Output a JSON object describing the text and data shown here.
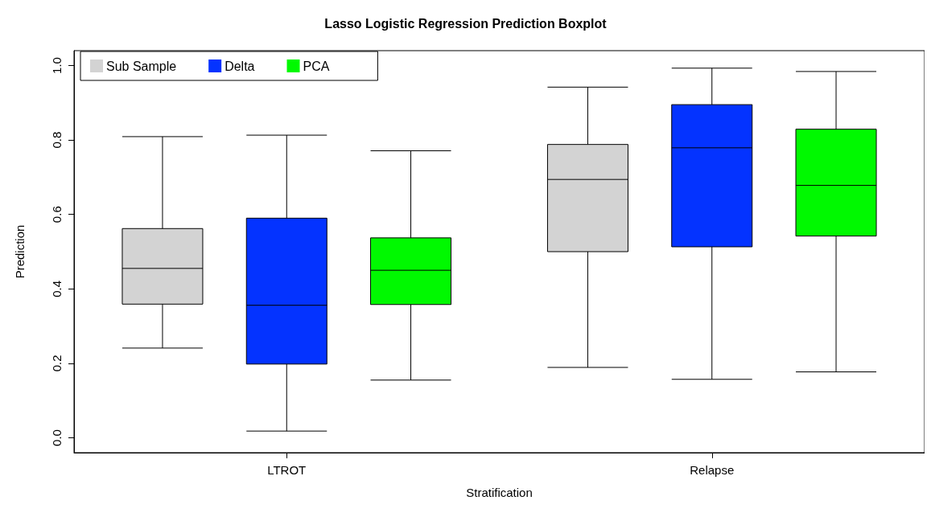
{
  "chart_data": {
    "type": "box",
    "title": "Lasso Logistic Regression Prediction Boxplot",
    "xlabel": "Stratification",
    "ylabel": "Prediction",
    "categories": [
      "LTROT",
      "Relapse"
    ],
    "ylim": [
      -0.04,
      1.04
    ],
    "yticks": [
      {
        "value": 0,
        "label": "0.0"
      },
      0.2,
      0.4,
      0.6,
      0.8,
      {
        "value": 1,
        "label": "1.0"
      }
    ],
    "grid": false,
    "legend": "top left",
    "series": [
      {
        "name": "Sub Sample",
        "color": "#d3d3d3",
        "boxes": [
          {
            "low": 0.241,
            "q1": 0.359,
            "median": 0.455,
            "q3": 0.562,
            "high": 0.809
          },
          {
            "low": 0.189,
            "q1": 0.5,
            "median": 0.694,
            "q3": 0.788,
            "high": 0.942
          }
        ]
      },
      {
        "name": "Delta",
        "color": "#0433ff",
        "boxes": [
          {
            "low": 0.018,
            "q1": 0.198,
            "median": 0.356,
            "q3": 0.59,
            "high": 0.813
          },
          {
            "low": 0.157,
            "q1": 0.513,
            "median": 0.779,
            "q3": 0.895,
            "high": 0.993
          }
        ]
      },
      {
        "name": "PCA",
        "color": "#00f900",
        "boxes": [
          {
            "low": 0.155,
            "q1": 0.358,
            "median": 0.45,
            "q3": 0.537,
            "high": 0.771
          },
          {
            "low": 0.177,
            "q1": 0.542,
            "median": 0.678,
            "q3": 0.829,
            "high": 0.984
          }
        ]
      }
    ]
  }
}
